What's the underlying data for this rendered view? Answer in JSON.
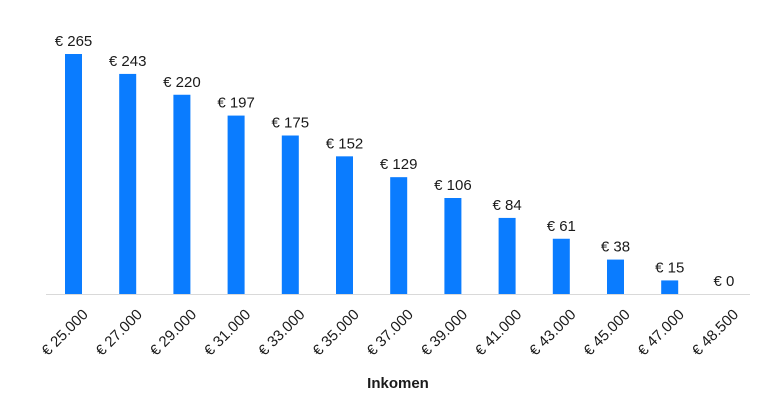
{
  "chart_data": {
    "type": "bar",
    "categories": [
      "€ 25.000",
      "€ 27.000",
      "€ 29.000",
      "€ 31.000",
      "€ 33.000",
      "€ 35.000",
      "€ 37.000",
      "€ 39.000",
      "€ 41.000",
      "€ 43.000",
      "€ 45.000",
      "€ 47.000",
      "€ 48.500"
    ],
    "values": [
      265,
      243,
      220,
      197,
      175,
      152,
      129,
      106,
      84,
      61,
      38,
      15,
      0
    ],
    "data_labels": [
      "€ 265",
      "€ 243",
      "€ 220",
      "€ 197",
      "€ 175",
      "€ 152",
      "€ 129",
      "€ 106",
      "€ 84",
      "€ 61",
      "€ 38",
      "€ 15",
      "€ 0"
    ],
    "title": "",
    "xlabel": "Inkomen",
    "ylabel": "",
    "ylim": [
      0,
      265
    ],
    "grid": false,
    "legend": "none",
    "bar_color": "#0a7cff",
    "axis_color": "#d9d9d9"
  }
}
